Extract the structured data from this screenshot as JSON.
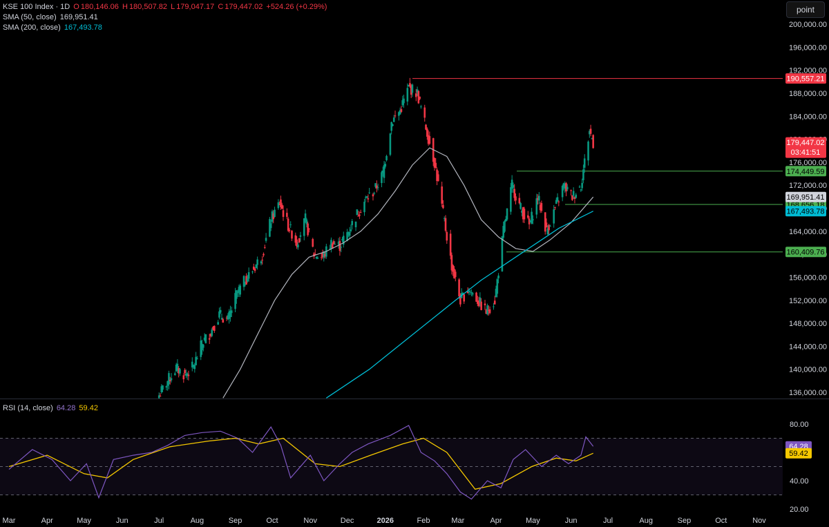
{
  "legend": {
    "symbol": "KSE 100 Index · 1D",
    "o_label": "O",
    "o": "180,146.06",
    "h_label": "H",
    "h": "180,507.82",
    "l_label": "L",
    "l": "179,047.17",
    "c_label": "C",
    "c": "179,447.02",
    "change": "+524.26 (+0.29%)",
    "sma50_label": "SMA (50, close)",
    "sma50": "169,951.41",
    "sma200_label": "SMA (200, close)",
    "sma200": "167,493.78",
    "rsi_label": "RSI (14, close)",
    "rsi": "64.28",
    "rsi_ma": "59.42"
  },
  "unit_button": "point",
  "colors": {
    "up": "#089981",
    "down": "#f23645",
    "sma50": "#b2b5be",
    "sma200": "#00bcd4",
    "rsi": "#7e57c2",
    "rsi_ma": "#f5c800",
    "hline_red": "#f23645",
    "hline_green": "#4caf50"
  },
  "chart_data": [
    {
      "type": "line",
      "title": "KSE 100 Index · 1D",
      "x_ticks": [
        "Mar",
        "Apr",
        "May",
        "Jun",
        "Jul",
        "Aug",
        "Sep",
        "Oct",
        "Nov",
        "Dec",
        "2026",
        "Feb",
        "Mar",
        "Apr",
        "May",
        "Jun",
        "Jul",
        "Aug",
        "Sep",
        "Oct",
        "Nov"
      ],
      "y_ticks": [
        "200,000.00",
        "196,000.00",
        "192,000.00",
        "188,000.00",
        "184,000.00",
        "180,000.00",
        "176,000.00",
        "172,000.00",
        "168,000.00",
        "164,000.00",
        "160,000.00",
        "156,000.00",
        "152,000.00",
        "148,000.00",
        "144,000.00",
        "140,000.00",
        "136,000.00"
      ],
      "ylim": [
        135000,
        201000
      ],
      "price_close": [
        [
          "2025-07-01",
          135500
        ],
        [
          "2025-07-08",
          138000
        ],
        [
          "2025-07-15",
          140200
        ],
        [
          "2025-07-22",
          139000
        ],
        [
          "2025-07-29",
          140500
        ],
        [
          "2025-08-05",
          144500
        ],
        [
          "2025-08-12",
          146500
        ],
        [
          "2025-08-19",
          149500
        ],
        [
          "2025-08-26",
          148500
        ],
        [
          "2025-09-02",
          153000
        ],
        [
          "2025-09-09",
          155500
        ],
        [
          "2025-09-16",
          157500
        ],
        [
          "2025-09-23",
          160000
        ],
        [
          "2025-09-30",
          166000
        ],
        [
          "2025-10-07",
          169000
        ],
        [
          "2025-10-14",
          165000
        ],
        [
          "2025-10-21",
          162000
        ],
        [
          "2025-10-28",
          166000
        ],
        [
          "2025-11-04",
          160000
        ],
        [
          "2025-11-11",
          159500
        ],
        [
          "2025-11-18",
          162000
        ],
        [
          "2025-11-25",
          161500
        ],
        [
          "2025-12-02",
          164000
        ],
        [
          "2025-12-09",
          167000
        ],
        [
          "2025-12-16",
          169500
        ],
        [
          "2025-12-23",
          171000
        ],
        [
          "2025-12-30",
          174000
        ],
        [
          "2026-01-06",
          183000
        ],
        [
          "2026-01-13",
          185000
        ],
        [
          "2026-01-20",
          189000
        ],
        [
          "2026-01-27",
          188000
        ],
        [
          "2026-02-03",
          182000
        ],
        [
          "2026-02-10",
          176000
        ],
        [
          "2026-02-17",
          167000
        ],
        [
          "2026-02-24",
          158000
        ],
        [
          "2026-03-03",
          152000
        ],
        [
          "2026-03-10",
          154000
        ],
        [
          "2026-03-17",
          152000
        ],
        [
          "2026-03-24",
          150000
        ],
        [
          "2026-03-31",
          152000
        ],
        [
          "2026-04-07",
          164000
        ],
        [
          "2026-04-14",
          172000
        ],
        [
          "2026-04-21",
          168000
        ],
        [
          "2026-04-28",
          165000
        ],
        [
          "2026-05-05",
          170000
        ],
        [
          "2026-05-12",
          164000
        ],
        [
          "2026-05-19",
          168000
        ],
        [
          "2026-05-26",
          172000
        ],
        [
          "2026-06-02",
          170000
        ],
        [
          "2026-06-09",
          172000
        ],
        [
          "2026-06-16",
          181500
        ],
        [
          "2026-06-19",
          179447.02
        ]
      ],
      "sma50": [
        [
          "2025-08-22",
          135000
        ],
        [
          "2025-09-05",
          140000
        ],
        [
          "2025-09-19",
          146000
        ],
        [
          "2025-10-03",
          152000
        ],
        [
          "2025-10-17",
          156500
        ],
        [
          "2025-10-31",
          159500
        ],
        [
          "2025-11-14",
          160500
        ],
        [
          "2025-11-28",
          162000
        ],
        [
          "2025-12-12",
          164000
        ],
        [
          "2025-12-26",
          167000
        ],
        [
          "2026-01-09",
          171000
        ],
        [
          "2026-01-23",
          175500
        ],
        [
          "2026-02-06",
          178500
        ],
        [
          "2026-02-20",
          177000
        ],
        [
          "2026-03-06",
          172000
        ],
        [
          "2026-03-20",
          166000
        ],
        [
          "2026-04-03",
          163000
        ],
        [
          "2026-04-17",
          161000
        ],
        [
          "2026-05-01",
          160500
        ],
        [
          "2026-05-15",
          162500
        ],
        [
          "2026-06-01",
          165500
        ],
        [
          "2026-06-19",
          169951.41
        ]
      ],
      "sma200": [
        [
          "2025-11-14",
          135000
        ],
        [
          "2025-12-19",
          140000
        ],
        [
          "2026-01-23",
          146000
        ],
        [
          "2026-02-27",
          152000
        ],
        [
          "2026-03-20",
          155500
        ],
        [
          "2026-04-10",
          158500
        ],
        [
          "2026-05-01",
          161500
        ],
        [
          "2026-05-22",
          164500
        ],
        [
          "2026-06-19",
          167493.78
        ]
      ],
      "horizontal_lines": [
        {
          "value": 190557.21,
          "label": "190,557.21",
          "color": "#f23645"
        },
        {
          "value": 174449.59,
          "label": "174,449.59",
          "color": "#4caf50"
        },
        {
          "value": 168656.18,
          "label": "168,656.18",
          "color": "#4caf50"
        },
        {
          "value": 160409.76,
          "label": "160,409.76",
          "color": "#4caf50"
        }
      ],
      "price_labels": [
        {
          "value": 179447.02,
          "label": "179,447.02",
          "sub": "03:41:51",
          "color": "#f23645"
        },
        {
          "value": 169951.41,
          "label": "169,951.41",
          "color": "#b2b5be"
        },
        {
          "value": 167493.78,
          "label": "167,493.78",
          "color": "#00bcd4"
        }
      ]
    },
    {
      "type": "line",
      "title": "RSI (14, close)",
      "y_ticks": [
        "80.00",
        "40.00",
        "20.00"
      ],
      "ylim": [
        18,
        84
      ],
      "bands": [
        70,
        50,
        30
      ],
      "rsi": [
        [
          "2025-03-01",
          48
        ],
        [
          "2025-03-20",
          62
        ],
        [
          "2025-04-05",
          55
        ],
        [
          "2025-04-20",
          40
        ],
        [
          "2025-05-03",
          52
        ],
        [
          "2025-05-13",
          28
        ],
        [
          "2025-05-25",
          55
        ],
        [
          "2025-06-10",
          58
        ],
        [
          "2025-06-25",
          60
        ],
        [
          "2025-07-08",
          65
        ],
        [
          "2025-07-22",
          72
        ],
        [
          "2025-08-05",
          74
        ],
        [
          "2025-08-20",
          75
        ],
        [
          "2025-09-03",
          70
        ],
        [
          "2025-09-15",
          60
        ],
        [
          "2025-09-30",
          78
        ],
        [
          "2025-10-08",
          65
        ],
        [
          "2025-10-16",
          42
        ],
        [
          "2025-11-01",
          58
        ],
        [
          "2025-11-12",
          40
        ],
        [
          "2025-11-25",
          52
        ],
        [
          "2025-12-05",
          60
        ],
        [
          "2025-12-18",
          66
        ],
        [
          "2026-01-05",
          72
        ],
        [
          "2026-01-20",
          79
        ],
        [
          "2026-01-30",
          60
        ],
        [
          "2026-02-10",
          54
        ],
        [
          "2026-02-20",
          45
        ],
        [
          "2026-03-03",
          32
        ],
        [
          "2026-03-12",
          27
        ],
        [
          "2026-03-25",
          40
        ],
        [
          "2026-04-05",
          35
        ],
        [
          "2026-04-15",
          55
        ],
        [
          "2026-04-25",
          62
        ],
        [
          "2026-05-08",
          50
        ],
        [
          "2026-05-20",
          58
        ],
        [
          "2026-05-30",
          52
        ],
        [
          "2026-06-09",
          58
        ],
        [
          "2026-06-13",
          71
        ],
        [
          "2026-06-19",
          64.28
        ]
      ],
      "rsi_ma": [
        [
          "2025-03-01",
          50
        ],
        [
          "2025-04-01",
          58
        ],
        [
          "2025-05-01",
          45
        ],
        [
          "2025-05-20",
          42
        ],
        [
          "2025-06-10",
          55
        ],
        [
          "2025-07-10",
          64
        ],
        [
          "2025-08-10",
          68
        ],
        [
          "2025-09-01",
          70
        ],
        [
          "2025-09-20",
          66
        ],
        [
          "2025-10-10",
          70
        ],
        [
          "2025-11-05",
          52
        ],
        [
          "2025-11-25",
          50
        ],
        [
          "2025-12-20",
          58
        ],
        [
          "2026-01-15",
          66
        ],
        [
          "2026-02-01",
          70
        ],
        [
          "2026-02-20",
          60
        ],
        [
          "2026-03-15",
          34
        ],
        [
          "2026-04-05",
          38
        ],
        [
          "2026-04-30",
          50
        ],
        [
          "2026-05-20",
          56
        ],
        [
          "2026-06-05",
          54
        ],
        [
          "2026-06-19",
          59.42
        ]
      ]
    }
  ]
}
